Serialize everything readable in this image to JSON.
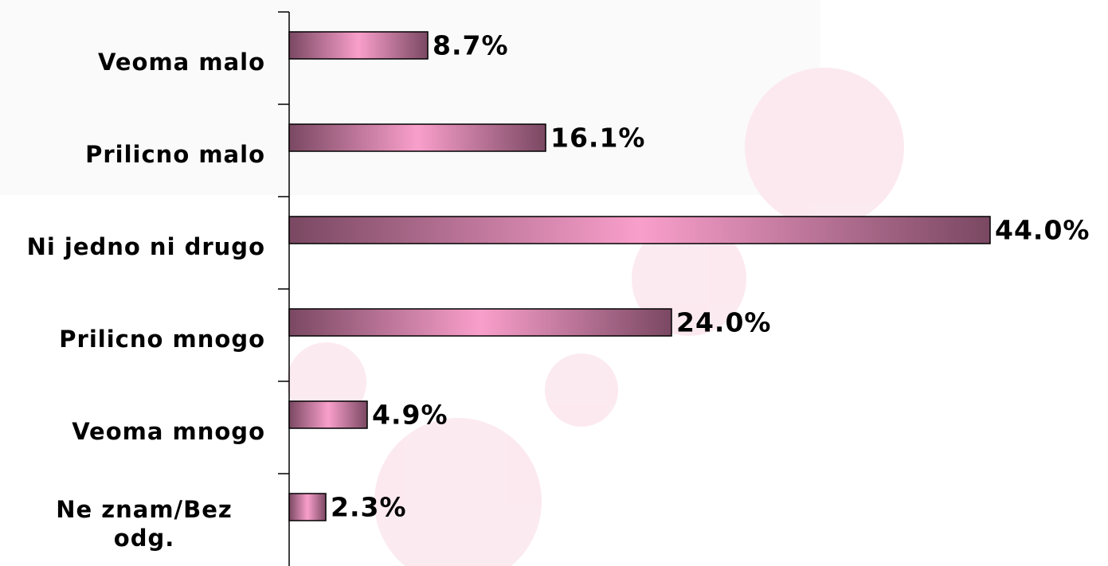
{
  "chart_data": {
    "type": "bar",
    "orientation": "horizontal",
    "categories": [
      "Veoma malo",
      "Prilicno malo",
      "Ni jedno ni drugo",
      "Prilicno mnogo",
      "Veoma mnogo",
      "Ne znam/Bez odg."
    ],
    "values": [
      8.7,
      16.1,
      44.0,
      24.0,
      4.9,
      2.3
    ],
    "value_labels": [
      "8.7%",
      "16.1%",
      "44.0%",
      "24.0%",
      "4.9%",
      "2.3%"
    ],
    "color": "#f99fcb",
    "edge_color": "#7a4862",
    "xlim": [
      0,
      50
    ]
  }
}
